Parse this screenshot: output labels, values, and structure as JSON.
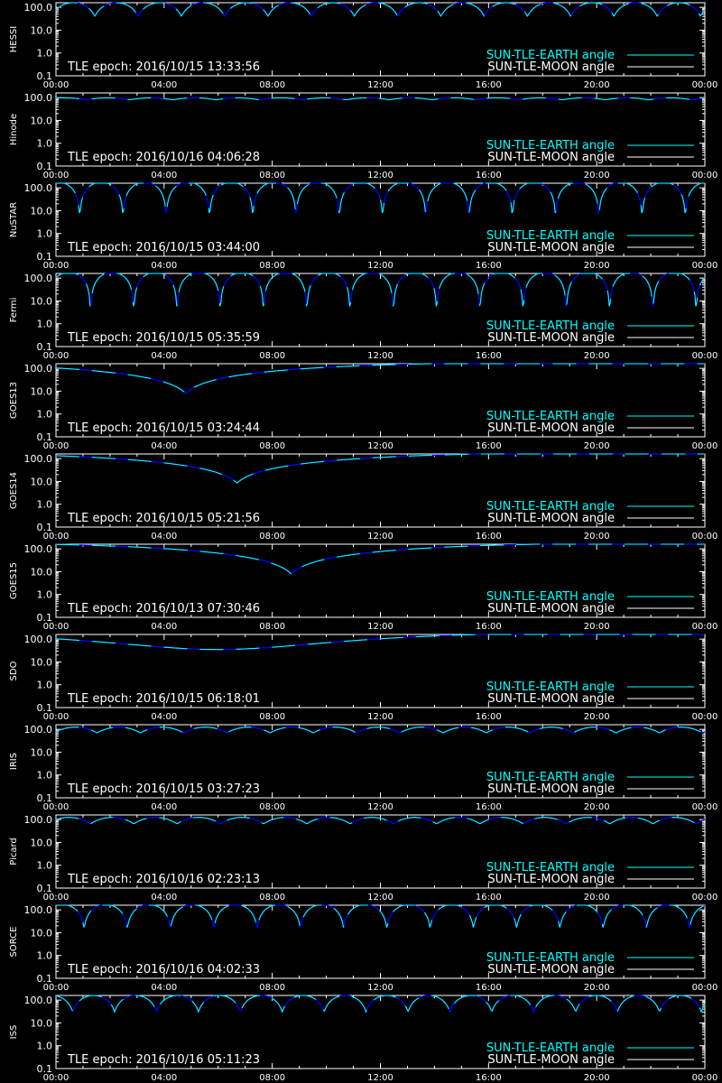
{
  "colors": {
    "background": "#000000",
    "axes": "#ffffff",
    "earth_angle": "#00ffff",
    "moon_angle": "#ffffff",
    "eclipse_segment": "#0000ff"
  },
  "legend": {
    "earth": "SUN-TLE-EARTH angle",
    "moon": "SUN-TLE-MOON angle"
  },
  "chart_data": [
    {
      "type": "line",
      "ylabel": "HESSI",
      "title": "TLE epoch: 2016/10/15 13:33:56",
      "x_ticks": [
        "00:00",
        "04:00",
        "08:00",
        "12:00",
        "16:00",
        "20:00",
        "00:00"
      ],
      "y_ticks": [
        "100.0",
        "10.0",
        "1.0",
        "0.1"
      ],
      "xlim": [
        0,
        24
      ],
      "ylim": [
        0.1,
        160
      ],
      "yscale": "log",
      "legend_position": "bottom-right",
      "series": [
        {
          "name": "SUN-TLE-EARTH angle",
          "profile": "orbit",
          "period_hours": 1.6,
          "max": 160,
          "min": 40,
          "phase": 0.1
        },
        {
          "name": "SUN-TLE-MOON angle",
          "values": []
        }
      ]
    },
    {
      "type": "line",
      "ylabel": "Hinode",
      "title": "TLE epoch: 2016/10/16 04:06:28",
      "x_ticks": [
        "00:00",
        "04:00",
        "08:00",
        "12:00",
        "16:00",
        "20:00",
        "00:00"
      ],
      "y_ticks": [
        "100.0",
        "10.0",
        "1.0",
        "0.1"
      ],
      "xlim": [
        0,
        24
      ],
      "ylim": [
        0.1,
        160
      ],
      "yscale": "log",
      "legend_position": "bottom-right",
      "series": [
        {
          "name": "SUN-TLE-EARTH angle",
          "profile": "orbit",
          "period_hours": 1.6,
          "max": 98,
          "min": 80,
          "phase": 0.3
        },
        {
          "name": "SUN-TLE-MOON angle",
          "values": []
        }
      ]
    },
    {
      "type": "line",
      "ylabel": "NuSTAR",
      "title": "TLE epoch: 2016/10/15 03:44:00",
      "x_ticks": [
        "00:00",
        "04:00",
        "08:00",
        "12:00",
        "16:00",
        "20:00",
        "00:00"
      ],
      "y_ticks": [
        "100.0",
        "10.0",
        "1.0",
        "0.1"
      ],
      "xlim": [
        0,
        24
      ],
      "ylim": [
        0.1,
        160
      ],
      "yscale": "log",
      "legend_position": "bottom-right",
      "series": [
        {
          "name": "SUN-TLE-EARTH angle",
          "profile": "orbit",
          "period_hours": 1.6,
          "max": 175,
          "min": 3.5,
          "phase": 0.45
        },
        {
          "name": "SUN-TLE-MOON angle",
          "values": []
        }
      ]
    },
    {
      "type": "line",
      "ylabel": "Fermi",
      "title": "TLE epoch: 2016/10/15 05:35:59",
      "x_ticks": [
        "00:00",
        "04:00",
        "08:00",
        "12:00",
        "16:00",
        "20:00",
        "00:00"
      ],
      "y_ticks": [
        "100.0",
        "10.0",
        "1.0",
        "0.1"
      ],
      "xlim": [
        0,
        24
      ],
      "ylim": [
        0.1,
        160
      ],
      "yscale": "log",
      "legend_position": "bottom-right",
      "series": [
        {
          "name": "SUN-TLE-EARTH angle",
          "profile": "orbit",
          "period_hours": 1.6,
          "max": 178,
          "min": 1.2,
          "phase": 0.2
        },
        {
          "name": "SUN-TLE-MOON angle",
          "values": []
        }
      ]
    },
    {
      "type": "line",
      "ylabel": "GOES13",
      "title": "TLE epoch: 2016/10/15 03:24:44",
      "x_ticks": [
        "00:00",
        "04:00",
        "08:00",
        "12:00",
        "16:00",
        "20:00",
        "00:00"
      ],
      "y_ticks": [
        "100.0",
        "10.0",
        "1.0",
        "0.1"
      ],
      "xlim": [
        0,
        24
      ],
      "ylim": [
        0.1,
        160
      ],
      "yscale": "log",
      "legend_position": "bottom-right",
      "series": [
        {
          "name": "SUN-TLE-EARTH angle",
          "profile": "geo",
          "min_time_hours": 4.8,
          "min_value": 8,
          "max_value": 172
        },
        {
          "name": "SUN-TLE-MOON angle",
          "values": []
        }
      ]
    },
    {
      "type": "line",
      "ylabel": "GOES14",
      "title": "TLE epoch: 2016/10/15 05:21:56",
      "x_ticks": [
        "00:00",
        "04:00",
        "08:00",
        "12:00",
        "16:00",
        "20:00",
        "00:00"
      ],
      "y_ticks": [
        "100.0",
        "10.0",
        "1.0",
        "0.1"
      ],
      "xlim": [
        0,
        24
      ],
      "ylim": [
        0.1,
        160
      ],
      "yscale": "log",
      "legend_position": "bottom-right",
      "series": [
        {
          "name": "SUN-TLE-EARTH angle",
          "profile": "geo",
          "min_time_hours": 6.7,
          "min_value": 8.5,
          "max_value": 172
        },
        {
          "name": "SUN-TLE-MOON angle",
          "values": []
        }
      ]
    },
    {
      "type": "line",
      "ylabel": "GOES15",
      "title": "TLE epoch: 2016/10/13 07:30:46",
      "x_ticks": [
        "00:00",
        "04:00",
        "08:00",
        "12:00",
        "16:00",
        "20:00",
        "00:00"
      ],
      "y_ticks": [
        "100.0",
        "10.0",
        "1.0",
        "0.1"
      ],
      "xlim": [
        0,
        24
      ],
      "ylim": [
        0.1,
        160
      ],
      "yscale": "log",
      "legend_position": "bottom-right",
      "series": [
        {
          "name": "SUN-TLE-EARTH angle",
          "profile": "geo",
          "min_time_hours": 8.7,
          "min_value": 8,
          "max_value": 172
        },
        {
          "name": "SUN-TLE-MOON angle",
          "values": []
        }
      ]
    },
    {
      "type": "line",
      "ylabel": "SDO",
      "title": "TLE epoch: 2016/10/15 06:18:01",
      "x_ticks": [
        "00:00",
        "04:00",
        "08:00",
        "12:00",
        "16:00",
        "20:00",
        "00:00"
      ],
      "y_ticks": [
        "100.0",
        "10.0",
        "1.0",
        "0.1"
      ],
      "xlim": [
        0,
        24
      ],
      "ylim": [
        0.1,
        160
      ],
      "yscale": "log",
      "legend_position": "bottom-right",
      "series": [
        {
          "name": "SUN-TLE-EARTH angle",
          "profile": "geo-smooth",
          "min_time_hours": 6.0,
          "min_value": 35,
          "max_value": 172
        },
        {
          "name": "SUN-TLE-MOON angle",
          "values": []
        }
      ]
    },
    {
      "type": "line",
      "ylabel": "IRIS",
      "title": "TLE epoch: 2016/10/15 03:27:23",
      "x_ticks": [
        "00:00",
        "04:00",
        "08:00",
        "12:00",
        "16:00",
        "20:00",
        "00:00"
      ],
      "y_ticks": [
        "100.0",
        "10.0",
        "1.0",
        "0.1"
      ],
      "xlim": [
        0,
        24
      ],
      "ylim": [
        0.1,
        160
      ],
      "yscale": "log",
      "legend_position": "bottom-right",
      "series": [
        {
          "name": "SUN-TLE-EARTH angle",
          "profile": "orbit",
          "period_hours": 1.6,
          "max": 125,
          "min": 70,
          "phase": 0.05
        },
        {
          "name": "SUN-TLE-MOON angle",
          "values": []
        }
      ]
    },
    {
      "type": "line",
      "ylabel": "Picard",
      "title": "TLE epoch: 2016/10/16 02:23:13",
      "x_ticks": [
        "00:00",
        "04:00",
        "08:00",
        "12:00",
        "16:00",
        "20:00",
        "00:00"
      ],
      "y_ticks": [
        "100.0",
        "10.0",
        "1.0",
        "0.1"
      ],
      "xlim": [
        0,
        24
      ],
      "ylim": [
        0.1,
        160
      ],
      "yscale": "log",
      "legend_position": "bottom-right",
      "series": [
        {
          "name": "SUN-TLE-EARTH angle",
          "profile": "orbit",
          "period_hours": 1.6,
          "max": 125,
          "min": 65,
          "phase": 0.2
        },
        {
          "name": "SUN-TLE-MOON angle",
          "values": []
        }
      ]
    },
    {
      "type": "line",
      "ylabel": "SORCE",
      "title": "TLE epoch: 2016/10/16 04:02:33",
      "x_ticks": [
        "00:00",
        "04:00",
        "08:00",
        "12:00",
        "16:00",
        "20:00",
        "00:00"
      ],
      "y_ticks": [
        "100.0",
        "10.0",
        "1.0",
        "0.1"
      ],
      "xlim": [
        0,
        24
      ],
      "ylim": [
        0.1,
        160
      ],
      "yscale": "log",
      "legend_position": "bottom-right",
      "series": [
        {
          "name": "SUN-TLE-EARTH angle",
          "profile": "orbit",
          "period_hours": 1.6,
          "max": 170,
          "min": 15,
          "phase": 0.35
        },
        {
          "name": "SUN-TLE-MOON angle",
          "values": []
        }
      ]
    },
    {
      "type": "line",
      "ylabel": "ISS",
      "title": "TLE epoch: 2016/10/16 05:11:23",
      "x_ticks": [
        "00:00",
        "04:00",
        "08:00",
        "12:00",
        "16:00",
        "20:00",
        "00:00"
      ],
      "y_ticks": [
        "100.0",
        "10.0",
        "1.0",
        "0.1"
      ],
      "xlim": [
        0,
        24
      ],
      "ylim": [
        0.1,
        160
      ],
      "yscale": "log",
      "legend_position": "bottom-right",
      "series": [
        {
          "name": "SUN-TLE-EARTH angle",
          "profile": "orbit",
          "period_hours": 1.55,
          "max": 160,
          "min": 30,
          "phase": 0.6
        },
        {
          "name": "SUN-TLE-MOON angle",
          "values": []
        }
      ]
    }
  ]
}
